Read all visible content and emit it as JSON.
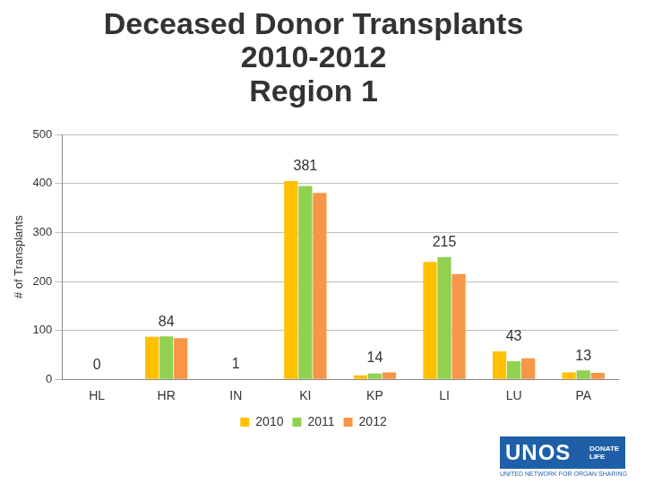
{
  "chart_data": {
    "type": "bar",
    "title": [
      "Deceased Donor Transplants",
      "2010-2012",
      "Region 1"
    ],
    "y_label": "# of Transplants",
    "categories": [
      "HL",
      "HR",
      "IN",
      "KI",
      "KP",
      "LI",
      "LU",
      "PA"
    ],
    "series": [
      {
        "name": "2010",
        "color": "#FFC000",
        "values": [
          0,
          87,
          0,
          405,
          8,
          240,
          57,
          14
        ]
      },
      {
        "name": "2011",
        "color": "#92D050",
        "values": [
          0,
          88,
          0,
          395,
          12,
          250,
          37,
          18
        ]
      },
      {
        "name": "2012",
        "color": "#F79646",
        "values": [
          0,
          84,
          1,
          381,
          14,
          215,
          43,
          13
        ],
        "data_labels": true
      }
    ],
    "ylim": [
      0,
      500
    ],
    "yticks": [
      0,
      100,
      200,
      300,
      400,
      500
    ],
    "grid": true,
    "legend": "bottom"
  },
  "logo": {
    "text": "UNOS",
    "tagline": "DONATE LIFE",
    "subtitle": "UNITED NETWORK FOR ORGAN SHARING"
  }
}
